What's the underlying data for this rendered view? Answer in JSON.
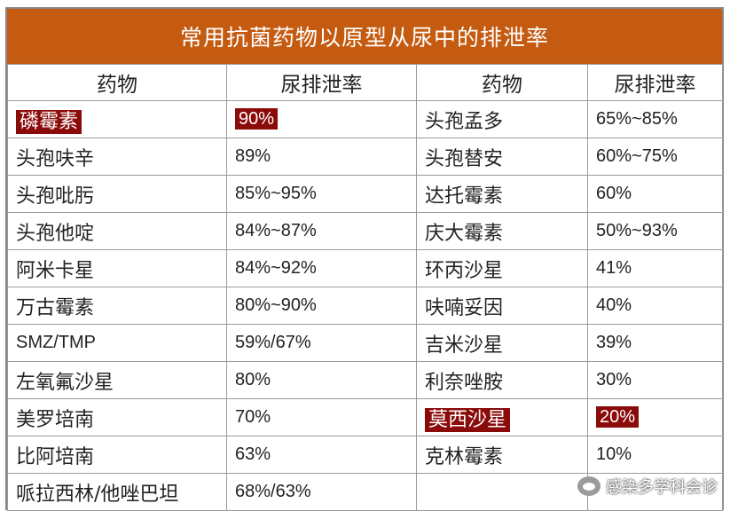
{
  "title": "常用抗菌药物以原型从尿中的排泄率",
  "headers": [
    "药物",
    "尿排泄率",
    "药物",
    "尿排泄率"
  ],
  "highlight_color": "#8b0a0a",
  "header_color": "#c55a11",
  "rows": [
    {
      "drug1": "磷霉素",
      "rate1": "90%",
      "drug2": "头孢孟多",
      "rate2": "65%~85%"
    },
    {
      "drug1": "头孢呋辛",
      "rate1": "89%",
      "drug2": "头孢替安",
      "rate2": "60%~75%"
    },
    {
      "drug1": "头孢吡肟",
      "rate1": "85%~95%",
      "drug2": "达托霉素",
      "rate2": "60%"
    },
    {
      "drug1": "头孢他啶",
      "rate1": "84%~87%",
      "drug2": "庆大霉素",
      "rate2": "50%~93%"
    },
    {
      "drug1": "阿米卡星",
      "rate1": "84%~92%",
      "drug2": "环丙沙星",
      "rate2": "41%"
    },
    {
      "drug1": "万古霉素",
      "rate1": "80%~90%",
      "drug2": "呋喃妥因",
      "rate2": "40%"
    },
    {
      "drug1": "SMZ/TMP",
      "rate1": "59%/67%",
      "drug2": "吉米沙星",
      "rate2": "39%"
    },
    {
      "drug1": "左氧氟沙星",
      "rate1": "80%",
      "drug2": "利奈唑胺",
      "rate2": "30%"
    },
    {
      "drug1": "美罗培南",
      "rate1": "70%",
      "drug2": "莫西沙星",
      "rate2": "20%"
    },
    {
      "drug1": "比阿培南",
      "rate1": "63%",
      "drug2": "克林霉素",
      "rate2": "10%"
    },
    {
      "drug1": "哌拉西林/他唑巴坦",
      "rate1": "68%/63%",
      "drug2": "",
      "rate2": ""
    }
  ],
  "watermark": {
    "icon": "chat-bubble-icon",
    "text": "感染多学科会诊"
  }
}
